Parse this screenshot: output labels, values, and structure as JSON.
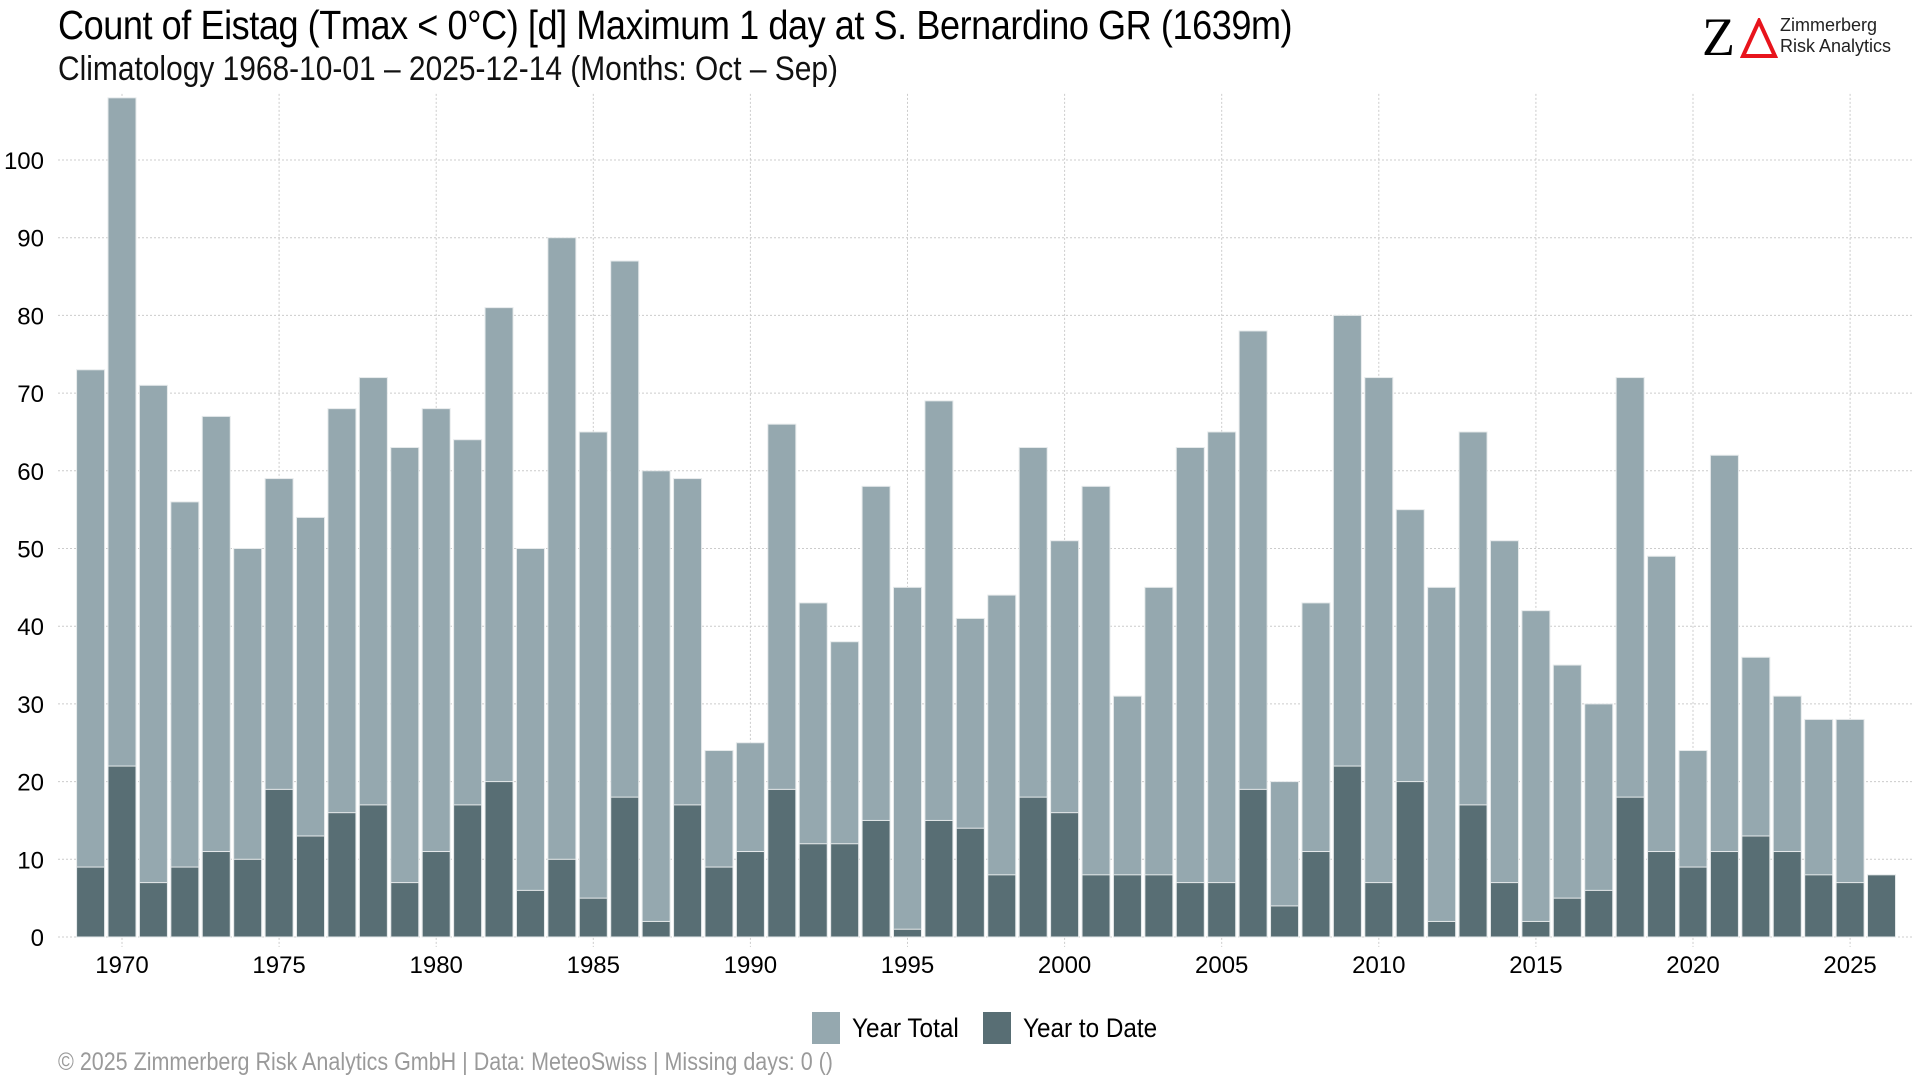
{
  "header": {
    "title": "Count of Eistag (Tmax < 0°C) [d] Maximum 1 day at S. Bernardino  GR (1639m)",
    "subtitle": "Climatology 1968-10-01 – 2025-12-14 (Months: Oct – Sep)"
  },
  "logo": {
    "mark": "ZΔ",
    "line1": "Zimmerberg",
    "line2": "Risk Analytics",
    "accent_color": "#e8141c"
  },
  "legend": {
    "items": [
      {
        "label": "Year Total",
        "color": "#95a8af"
      },
      {
        "label": "Year to Date",
        "color": "#586e74"
      }
    ]
  },
  "footer": {
    "text": "©  2025 Zimmerberg Risk Analytics GmbH | Data: MeteoSwiss | Missing days: 0 ()"
  },
  "chart_data": {
    "type": "bar",
    "title": "Count of Eistag (Tmax < 0°C) [d] Maximum 1 day at S. Bernardino  GR (1639m)",
    "subtitle": "Climatology 1968-10-01 – 2025-12-14 (Months: Oct – Sep)",
    "xlabel": "",
    "ylabel": "",
    "ylim": [
      0,
      108
    ],
    "yticks": [
      0,
      10,
      20,
      30,
      40,
      50,
      60,
      70,
      80,
      90,
      100
    ],
    "xticks": [
      1970,
      1975,
      1980,
      1985,
      1990,
      1995,
      2000,
      2005,
      2010,
      2015,
      2020,
      2025
    ],
    "grid": true,
    "legend_position": "bottom",
    "categories": [
      1969,
      1970,
      1971,
      1972,
      1973,
      1974,
      1975,
      1976,
      1977,
      1978,
      1979,
      1980,
      1981,
      1982,
      1983,
      1984,
      1985,
      1986,
      1987,
      1988,
      1989,
      1990,
      1991,
      1992,
      1993,
      1994,
      1995,
      1996,
      1997,
      1998,
      1999,
      2000,
      2001,
      2002,
      2003,
      2004,
      2005,
      2006,
      2007,
      2008,
      2009,
      2010,
      2011,
      2012,
      2013,
      2014,
      2015,
      2016,
      2017,
      2018,
      2019,
      2020,
      2021,
      2022,
      2023,
      2024,
      2025,
      2026
    ],
    "series": [
      {
        "name": "Year Total",
        "color": "#95a8af",
        "values": [
          73,
          108,
          71,
          56,
          67,
          50,
          59,
          54,
          68,
          72,
          63,
          68,
          64,
          81,
          50,
          90,
          65,
          87,
          60,
          59,
          24,
          25,
          66,
          43,
          38,
          58,
          45,
          69,
          41,
          44,
          63,
          51,
          58,
          31,
          45,
          63,
          65,
          78,
          20,
          43,
          80,
          72,
          55,
          45,
          65,
          51,
          42,
          35,
          30,
          72,
          49,
          24,
          62,
          36,
          31,
          28,
          28,
          null
        ]
      },
      {
        "name": "Year to Date",
        "color": "#586e74",
        "values": [
          9,
          22,
          7,
          9,
          11,
          10,
          19,
          13,
          16,
          17,
          7,
          11,
          17,
          20,
          6,
          10,
          5,
          18,
          2,
          17,
          9,
          11,
          19,
          12,
          12,
          15,
          1,
          15,
          14,
          8,
          18,
          16,
          8,
          8,
          8,
          7,
          7,
          19,
          4,
          11,
          22,
          7,
          20,
          2,
          17,
          7,
          2,
          5,
          6,
          18,
          11,
          9,
          11,
          13,
          11,
          8,
          7,
          8
        ]
      }
    ]
  }
}
